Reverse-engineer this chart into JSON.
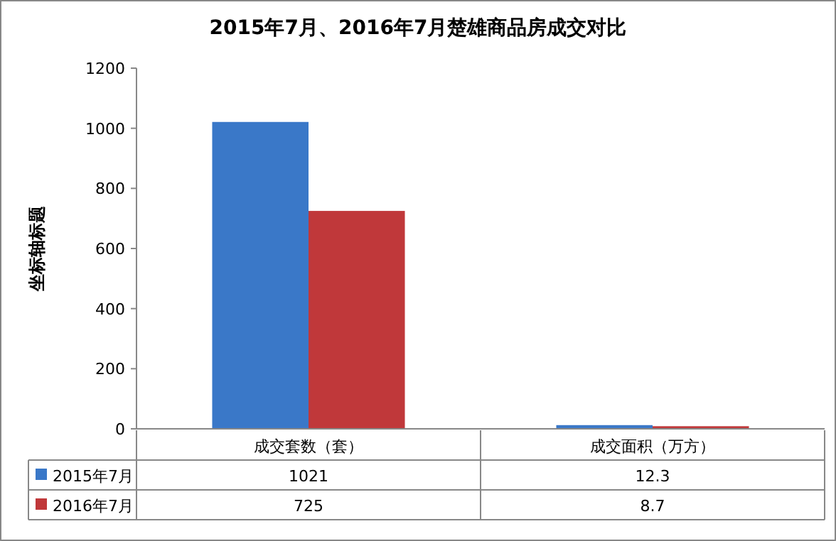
{
  "chart_data": {
    "type": "bar",
    "title": "2015年7月、2016年7月楚雄商品房成交对比",
    "ylabel": "坐标轴标题",
    "categories": [
      "成交套数（套）",
      "成交面积（万方）"
    ],
    "series": [
      {
        "name": "2015年7月",
        "color": "#3a78c8",
        "values": [
          1021,
          12.3
        ]
      },
      {
        "name": "2016年7月",
        "color": "#c0383a",
        "values": [
          725,
          8.7
        ]
      }
    ],
    "ylim": [
      0,
      1200
    ],
    "yticks": [
      0,
      200,
      400,
      600,
      800,
      1000,
      1200
    ],
    "data_labels": true,
    "legend": "bottom"
  }
}
